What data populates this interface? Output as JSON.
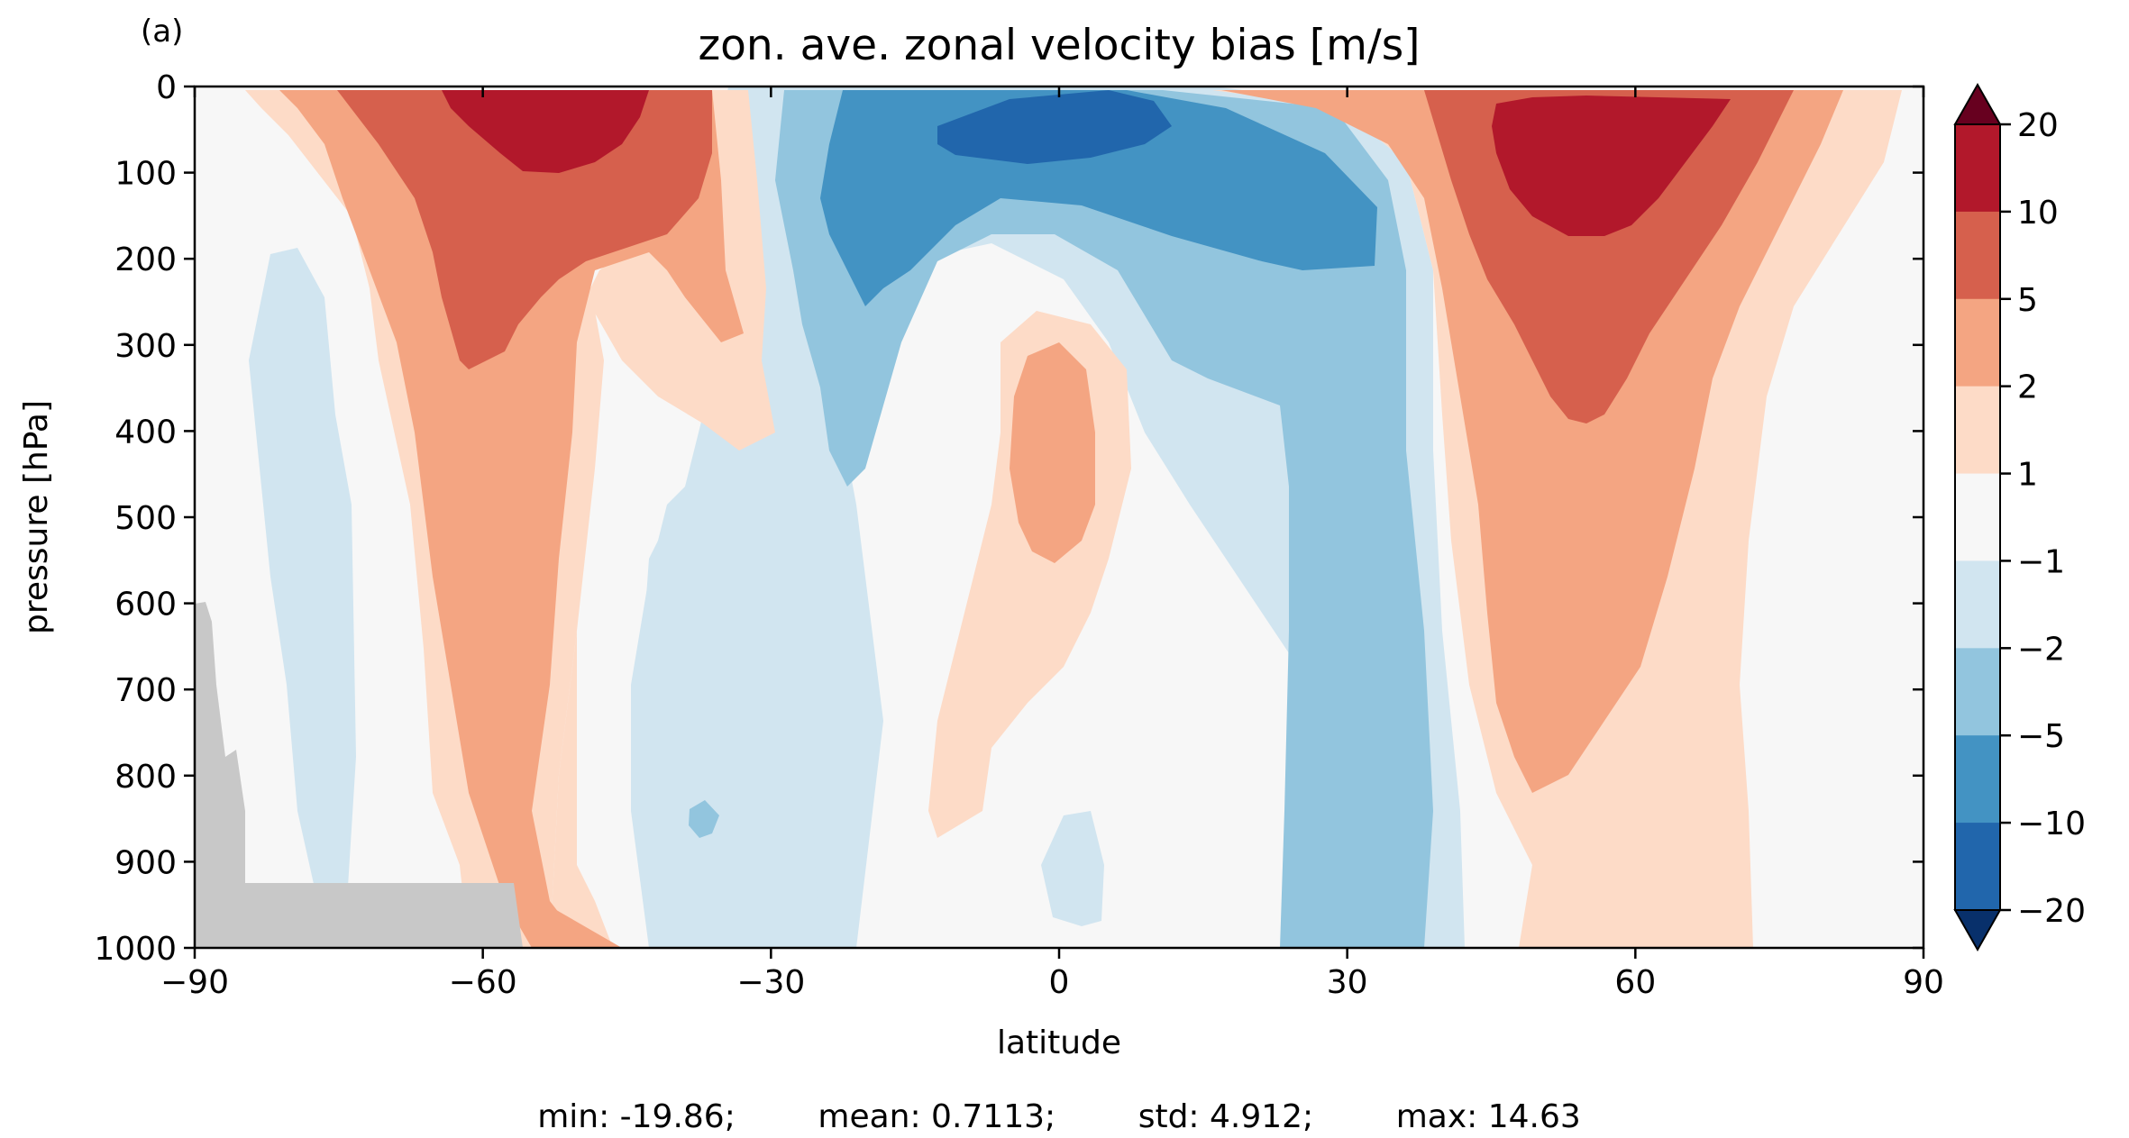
{
  "panel_label": "(a)",
  "stats_line": "min: -19.86;        mean: 0.7113;        std: 4.912;        max: 14.63",
  "chart_data": {
    "type": "filled-contour",
    "title": "zon. ave. zonal velocity bias [m/s]",
    "xlabel": "latitude",
    "ylabel": "pressure [hPa]",
    "xlim": [
      -90,
      90
    ],
    "ylim": [
      1000,
      0
    ],
    "xticks": [
      -90,
      -60,
      -30,
      0,
      30,
      60,
      90
    ],
    "xtick_labels": [
      "−90",
      "−60",
      "−30",
      "0",
      "30",
      "60",
      "90"
    ],
    "yticks": [
      0,
      100,
      200,
      300,
      400,
      500,
      600,
      700,
      800,
      900,
      1000
    ],
    "ytick_labels": [
      "0",
      "100",
      "200",
      "300",
      "400",
      "500",
      "600",
      "700",
      "800",
      "900",
      "1000"
    ],
    "levels": [
      -20,
      -10,
      -5,
      -2,
      -1,
      1,
      2,
      5,
      10,
      20
    ],
    "colorbar_labels": [
      "20",
      "10",
      "5",
      "2",
      "1",
      "−1",
      "−2",
      "−5",
      "−10",
      "−20"
    ],
    "colorbar_extend": "both",
    "colors": {
      "below": "#08306b",
      "b_-20_-10": "#2166ac",
      "b_-10_-5": "#4393c3",
      "b_-5_-2": "#92c5de",
      "b_-2_-1": "#d1e5f0",
      "b_-1_1": "#f7f7f7",
      "b_1_2": "#fddbc7",
      "b_2_5": "#f4a582",
      "b_5_10": "#d6604d",
      "b_10_20": "#b2182b",
      "above": "#67001f",
      "missing": "#c8c8c8"
    },
    "features": [
      {
        "name": "SH jet positive bias",
        "lat": -54,
        "pressure": 50,
        "value_range": [
          10,
          20
        ]
      },
      {
        "name": "NH jet positive bias",
        "lat": 55,
        "pressure": 100,
        "value_range": [
          10,
          20
        ]
      },
      {
        "name": "equatorial upper negative bias",
        "lat": 3,
        "pressure": 50,
        "value_range": [
          -20,
          -10
        ]
      },
      {
        "name": "equatorial mid positive bias",
        "lat": 0,
        "pressure": 450,
        "value_range": [
          2,
          5
        ]
      }
    ],
    "stats": {
      "min": -19.86,
      "mean": 0.7113,
      "std": 4.912,
      "max": 14.63
    }
  }
}
